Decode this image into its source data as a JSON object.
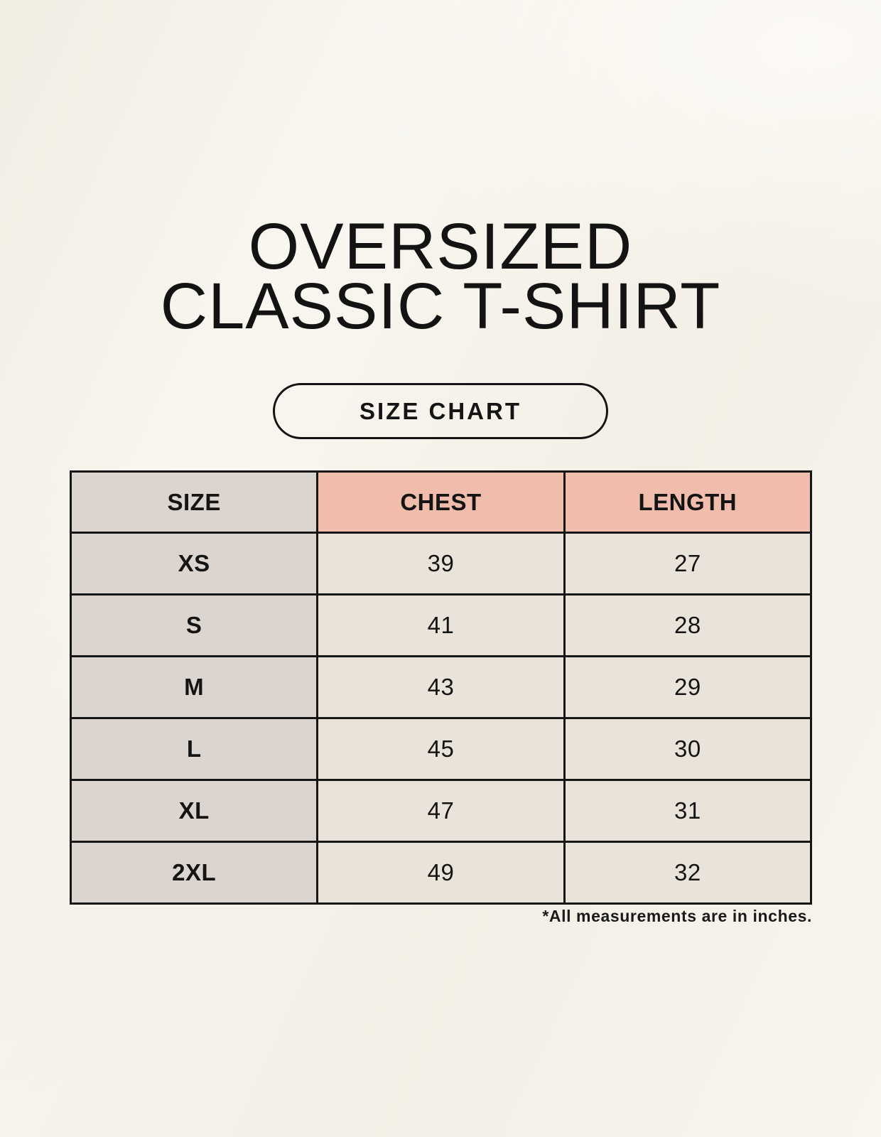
{
  "title": {
    "line1": "OVERSIZED",
    "line2": "CLASSIC T-SHIRT"
  },
  "button": {
    "label": "SIZE CHART"
  },
  "size_table": {
    "columns": [
      "SIZE",
      "CHEST",
      "LENGTH"
    ],
    "rows": [
      {
        "size": "XS",
        "chest": "39",
        "length": "27"
      },
      {
        "size": "S",
        "chest": "41",
        "length": "28"
      },
      {
        "size": "M",
        "chest": "43",
        "length": "29"
      },
      {
        "size": "L",
        "chest": "45",
        "length": "30"
      },
      {
        "size": "XL",
        "chest": "47",
        "length": "31"
      },
      {
        "size": "2XL",
        "chest": "49",
        "length": "32"
      }
    ]
  },
  "footnote": "*All measurements are in inches.",
  "colors": {
    "background": "#f6f3ec",
    "header_pink": "#f0bcab",
    "size_column_gray": "#dbd4cf",
    "value_cell_beige": "#eae3d9",
    "border": "#161616",
    "text": "#141414"
  }
}
